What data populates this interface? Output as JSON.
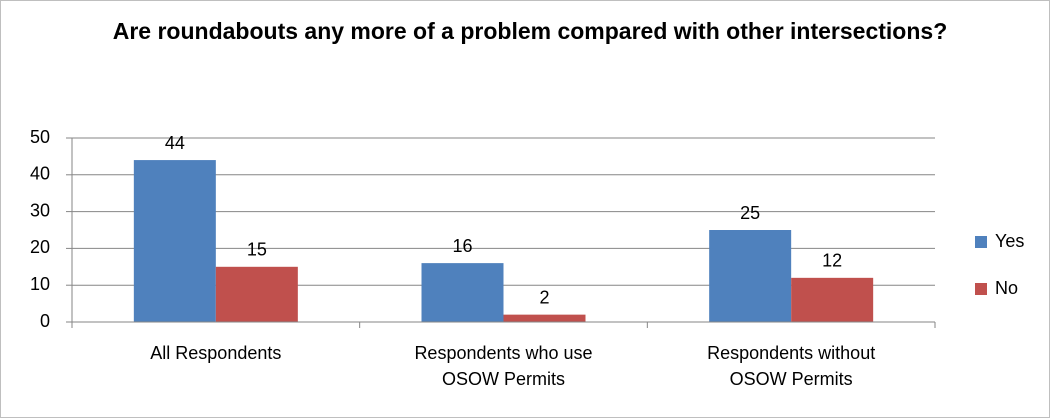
{
  "chart_data": {
    "type": "bar",
    "title": "Are roundabouts any more of a problem compared with other intersections?",
    "categories": [
      "All Respondents",
      "Respondents who use OSOW Permits",
      "Respondents without OSOW Permits"
    ],
    "series": [
      {
        "name": "Yes",
        "color": "#4f81bd",
        "values": [
          44,
          16,
          25
        ]
      },
      {
        "name": "No",
        "color": "#c0504d",
        "values": [
          15,
          2,
          12
        ]
      }
    ],
    "ylim": [
      0,
      50
    ],
    "yticks": [
      0,
      10,
      20,
      30,
      40,
      50
    ],
    "grid": true,
    "legend": "right"
  }
}
